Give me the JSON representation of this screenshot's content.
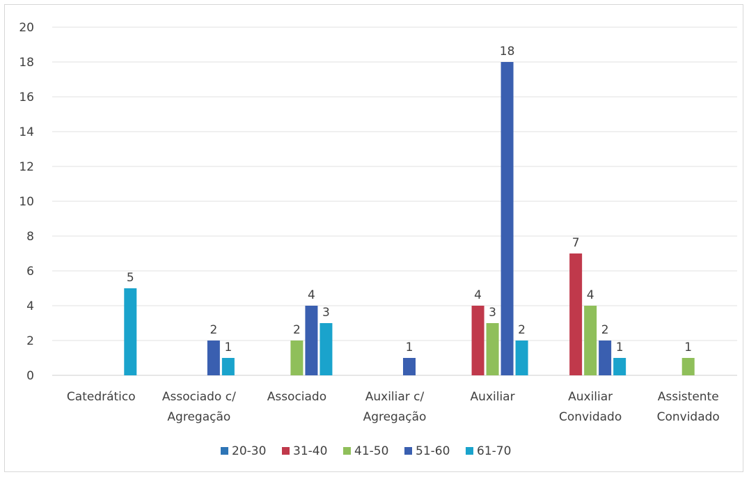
{
  "chart_data": {
    "type": "bar",
    "categories": [
      [
        "Catedrático"
      ],
      [
        "Associado c/",
        "Agregação"
      ],
      [
        "Associado"
      ],
      [
        "Auxiliar c/",
        "Agregação"
      ],
      [
        "Auxiliar"
      ],
      [
        "Auxiliar",
        "Convidado"
      ],
      [
        "Assistente",
        "Convidado"
      ]
    ],
    "series": [
      {
        "name": "20-30",
        "color": "#2e75b6",
        "values": [
          0,
          0,
          0,
          0,
          0,
          0,
          0
        ]
      },
      {
        "name": "31-40",
        "color": "#c0394b",
        "values": [
          0,
          0,
          0,
          0,
          4,
          7,
          0
        ]
      },
      {
        "name": "41-50",
        "color": "#8fbf5a",
        "values": [
          0,
          0,
          2,
          0,
          3,
          4,
          1
        ]
      },
      {
        "name": "51-60",
        "color": "#3a5fb0",
        "values": [
          0,
          2,
          4,
          1,
          18,
          2,
          0
        ]
      },
      {
        "name": "61-70",
        "color": "#1aa3cc",
        "values": [
          5,
          1,
          3,
          0,
          2,
          1,
          0
        ]
      }
    ],
    "ylim": [
      0,
      20
    ],
    "yticks": [
      "0",
      "2",
      "4",
      "6",
      "8",
      "10",
      "12",
      "14",
      "16",
      "18",
      "20"
    ],
    "grid": true,
    "legend": "bottom"
  }
}
